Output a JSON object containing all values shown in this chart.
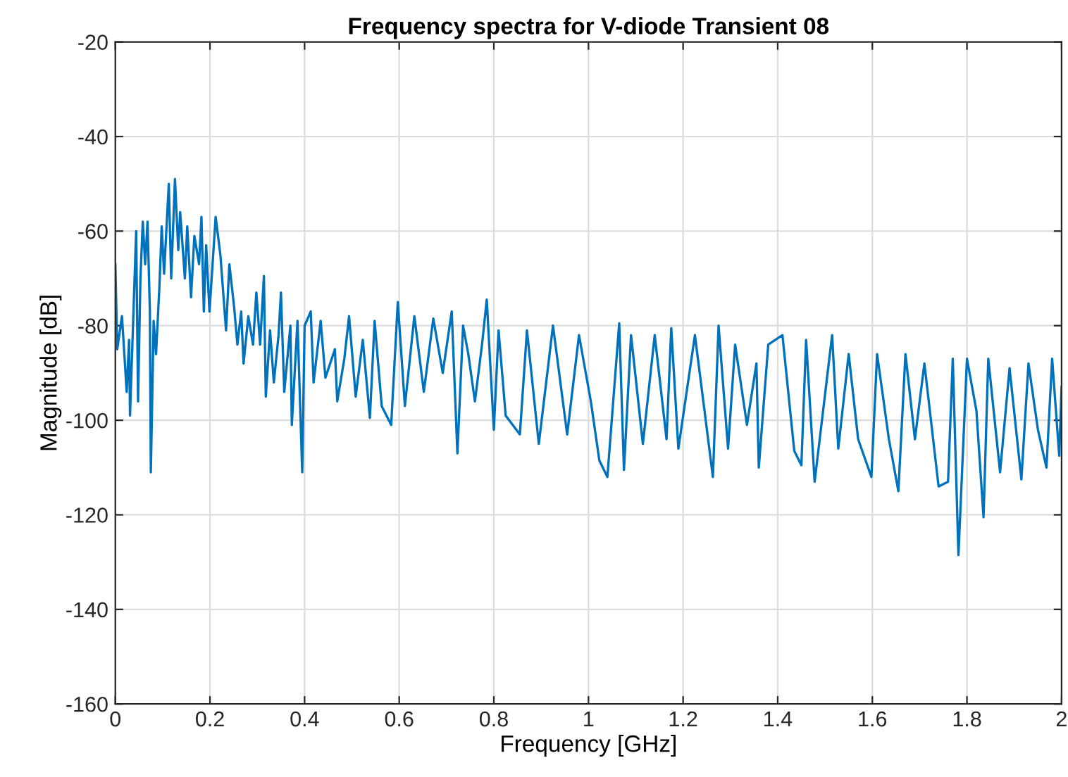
{
  "chart_data": {
    "type": "line",
    "title": "Frequency spectra for V-diode Transient 08",
    "xlabel": "Frequency [GHz]",
    "ylabel": "Magnitude [dB]",
    "x": [
      0,
      0.004,
      0.014,
      0.024,
      0.029,
      0.031,
      0.036,
      0.044,
      0.048,
      0.053,
      0.058,
      0.063,
      0.068,
      0.073,
      0.075,
      0.081,
      0.086,
      0.093,
      0.098,
      0.103,
      0.113,
      0.118,
      0.126,
      0.133,
      0.137,
      0.147,
      0.152,
      0.16,
      0.167,
      0.177,
      0.182,
      0.187,
      0.192,
      0.199,
      0.212,
      0.222,
      0.234,
      0.241,
      0.251,
      0.258,
      0.266,
      0.271,
      0.281,
      0.291,
      0.298,
      0.306,
      0.314,
      0.318,
      0.327,
      0.335,
      0.345,
      0.35,
      0.357,
      0.37,
      0.373,
      0.385,
      0.395,
      0.4,
      0.413,
      0.419,
      0.434,
      0.444,
      0.464,
      0.469,
      0.484,
      0.494,
      0.508,
      0.523,
      0.538,
      0.548,
      0.563,
      0.583,
      0.597,
      0.612,
      0.632,
      0.652,
      0.672,
      0.692,
      0.711,
      0.723,
      0.735,
      0.746,
      0.76,
      0.775,
      0.785,
      0.8,
      0.81,
      0.825,
      0.855,
      0.87,
      0.895,
      0.925,
      0.955,
      0.98,
      1.005,
      1.023,
      1.04,
      1.065,
      1.075,
      1.09,
      1.115,
      1.14,
      1.165,
      1.175,
      1.19,
      1.225,
      1.263,
      1.275,
      1.295,
      1.31,
      1.335,
      1.355,
      1.36,
      1.38,
      1.41,
      1.435,
      1.45,
      1.46,
      1.478,
      1.515,
      1.528,
      1.55,
      1.57,
      1.598,
      1.61,
      1.635,
      1.655,
      1.67,
      1.69,
      1.71,
      1.74,
      1.76,
      1.77,
      1.782,
      1.8,
      1.82,
      1.835,
      1.845,
      1.87,
      1.89,
      1.915,
      1.93,
      1.95,
      1.968,
      1.98,
      1.995,
      2.0
    ],
    "values": [
      -67,
      -85,
      -78,
      -94,
      -83,
      -99,
      -84,
      -60,
      -96,
      -70,
      -58,
      -67,
      -58,
      -77,
      -111,
      -79,
      -86,
      -72,
      -59,
      -69,
      -50,
      -70,
      -49,
      -64,
      -56,
      -70,
      -59,
      -74,
      -61,
      -67,
      -57,
      -77,
      -63,
      -77,
      -57,
      -65,
      -81,
      -67,
      -76,
      -84,
      -77,
      -88,
      -78,
      -84,
      -73,
      -84,
      -69.5,
      -95,
      -81,
      -92,
      -82,
      -73,
      -94,
      -80,
      -101,
      -79,
      -111,
      -80,
      -77,
      -92,
      -79,
      -91,
      -85,
      -96,
      -87,
      -78,
      -95,
      -83,
      -99.5,
      -79,
      -97,
      -101,
      -75,
      -97,
      -78,
      -94,
      -78.5,
      -90,
      -77,
      -107,
      -80,
      -86,
      -96,
      -84,
      -74.5,
      -102,
      -81,
      -99,
      -103,
      -81,
      -105,
      -80,
      -103,
      -82,
      -96,
      -108.5,
      -112,
      -79.5,
      -110.5,
      -82,
      -105,
      -82,
      -104,
      -80.5,
      -106,
      -82,
      -112,
      -80,
      -106,
      -84,
      -101,
      -88,
      -110,
      -84,
      -82,
      -106.5,
      -109.5,
      -83,
      -113,
      -82,
      -106,
      -86,
      -104,
      -112,
      -86,
      -104,
      -115,
      -86,
      -104,
      -88,
      -114,
      -113,
      -87,
      -128.5,
      -87,
      -98,
      -120.5,
      -87,
      -111,
      -89,
      -112.5,
      -88,
      -102,
      -110,
      -87,
      -107.5,
      -93
    ],
    "color": "#0072bd",
    "xlim": [
      0,
      2
    ],
    "ylim": [
      -160,
      -20
    ],
    "xticks": [
      0,
      0.2,
      0.4,
      0.6,
      0.8,
      1,
      1.2,
      1.4,
      1.6,
      1.8,
      2
    ],
    "yticks": [
      -160,
      -140,
      -120,
      -100,
      -80,
      -60,
      -40,
      -20
    ],
    "grid": true,
    "marker": "none",
    "line_style": "solid",
    "legend": false
  }
}
